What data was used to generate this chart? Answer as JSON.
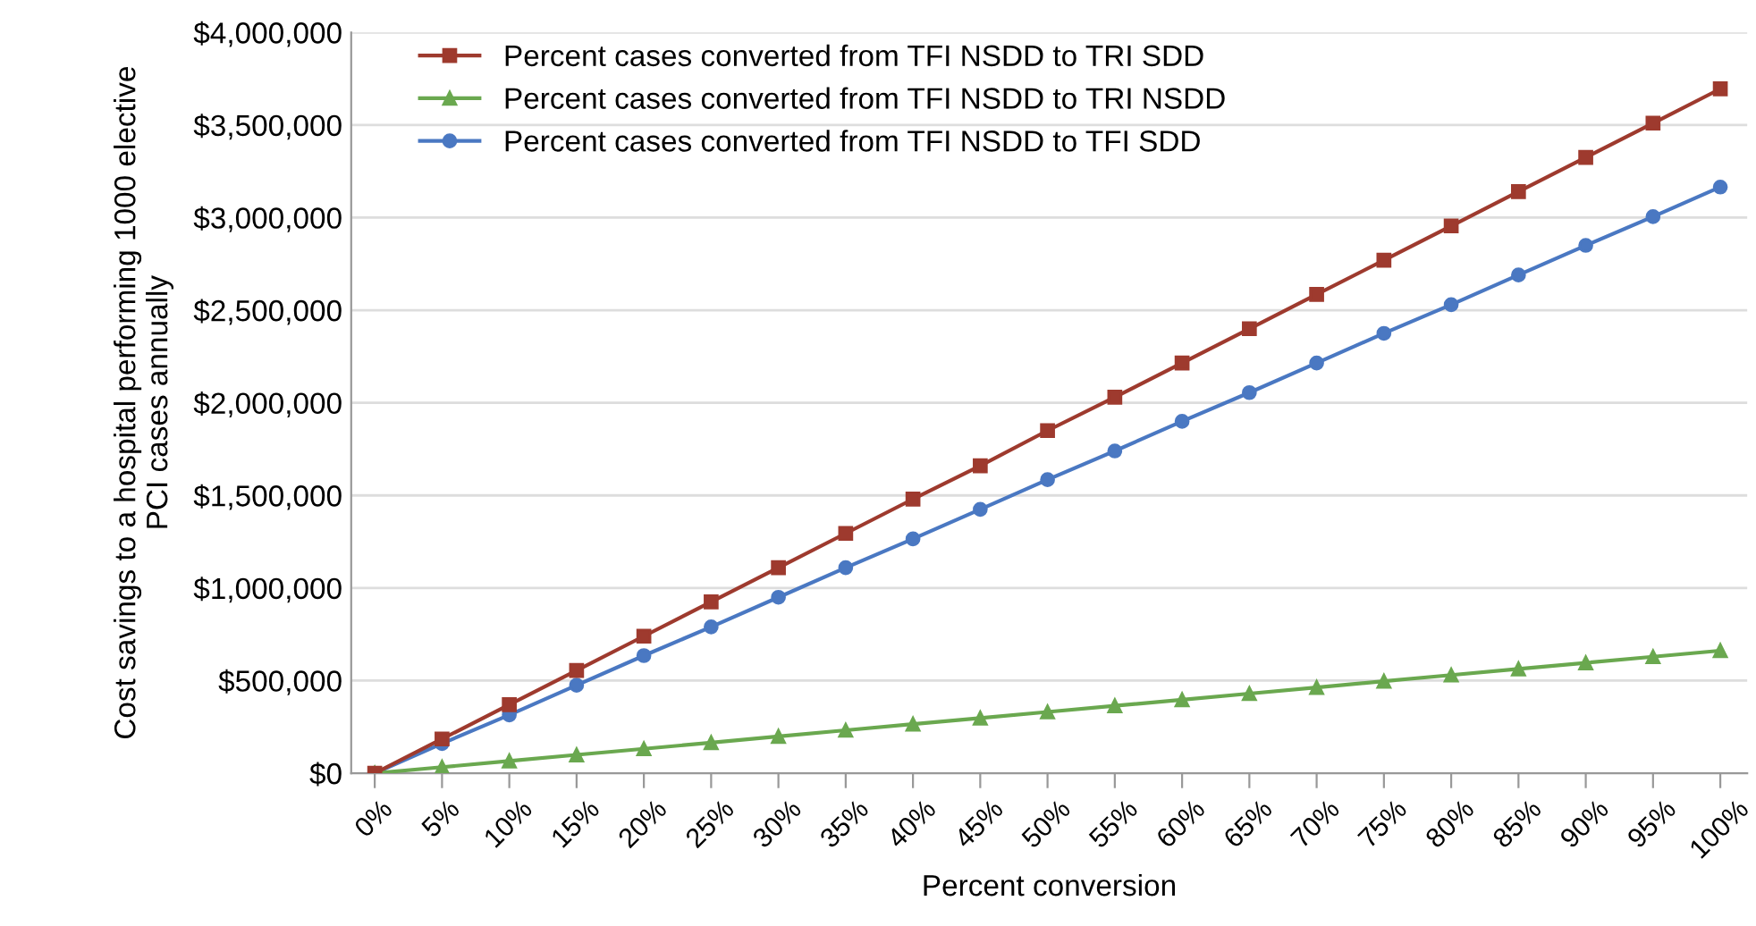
{
  "chart_data": {
    "type": "line",
    "xlabel": "Percent conversion",
    "ylabel": "Cost savings to a hospital performing 1000 elective\nPCI cases annually",
    "categories": [
      "0%",
      "5%",
      "10%",
      "15%",
      "20%",
      "25%",
      "30%",
      "35%",
      "40%",
      "45%",
      "50%",
      "55%",
      "60%",
      "65%",
      "70%",
      "75%",
      "80%",
      "85%",
      "90%",
      "95%",
      "100%"
    ],
    "series": [
      {
        "name": "Percent cases converted from TFI NSDD to TRI SDD",
        "color": "#9e3a2e",
        "marker": "square",
        "values": [
          0,
          185000,
          370000,
          555000,
          740000,
          925000,
          1110000,
          1295000,
          1480000,
          1660000,
          1850000,
          2030000,
          2215000,
          2400000,
          2585000,
          2770000,
          2955000,
          3140000,
          3325000,
          3510000,
          3695000
        ]
      },
      {
        "name": "Percent cases converted from TFI NSDD to TRI NSDD",
        "color": "#6aa84f",
        "marker": "triangle",
        "values": [
          0,
          33000,
          66000,
          99000,
          132000,
          165000,
          199000,
          232000,
          265000,
          298000,
          331000,
          364000,
          397000,
          430000,
          463000,
          497000,
          530000,
          563000,
          596000,
          629000,
          662000
        ]
      },
      {
        "name": "Percent cases converted from TFI NSDD to TFI SDD",
        "color": "#4a78c2",
        "marker": "circle",
        "values": [
          0,
          160000,
          315000,
          475000,
          635000,
          790000,
          950000,
          1110000,
          1265000,
          1425000,
          1585000,
          1740000,
          1900000,
          2055000,
          2215000,
          2375000,
          2530000,
          2690000,
          2850000,
          3005000,
          3165000
        ]
      }
    ],
    "ylim": [
      0,
      4000000
    ],
    "yticks": [
      {
        "value": 0,
        "label": "$0"
      },
      {
        "value": 500000,
        "label": "$500,000"
      },
      {
        "value": 1000000,
        "label": "$1,000,000"
      },
      {
        "value": 1500000,
        "label": "$1,500,000"
      },
      {
        "value": 2000000,
        "label": "$2,000,000"
      },
      {
        "value": 2500000,
        "label": "$2,500,000"
      },
      {
        "value": 3000000,
        "label": "$3,000,000"
      },
      {
        "value": 3500000,
        "label": "$3,500,000"
      },
      {
        "value": 4000000,
        "label": "$4,000,000"
      }
    ],
    "grid": "y",
    "legend": "top left",
    "line_style": "solid"
  }
}
